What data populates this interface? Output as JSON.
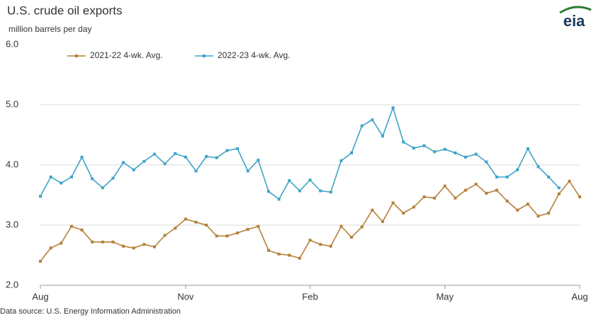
{
  "chart_data": {
    "type": "line",
    "title": "U.S. crude oil exports",
    "subtitle": "million barrels per day",
    "source": "Data source: U.S. Energy Information Administration",
    "logo": "eia",
    "categories": [
      "Aug",
      null,
      null,
      null,
      null,
      null,
      null,
      null,
      null,
      null,
      null,
      null,
      null,
      null,
      "Nov",
      null,
      null,
      null,
      null,
      null,
      null,
      null,
      null,
      null,
      null,
      null,
      "Feb",
      null,
      null,
      null,
      null,
      null,
      null,
      null,
      null,
      null,
      null,
      null,
      null,
      "May",
      null,
      null,
      null,
      null,
      null,
      null,
      null,
      null,
      null,
      null,
      null,
      null,
      "Aug"
    ],
    "series": [
      {
        "name": "2021-22 4-wk. Avg.",
        "color": "#b5803a",
        "values": [
          2.4,
          2.62,
          2.7,
          2.98,
          2.92,
          2.72,
          2.72,
          2.72,
          2.65,
          2.62,
          2.68,
          2.64,
          2.83,
          2.95,
          3.1,
          3.05,
          3.0,
          2.82,
          2.82,
          2.87,
          2.93,
          2.98,
          2.58,
          2.52,
          2.5,
          2.45,
          2.75,
          2.68,
          2.65,
          2.98,
          2.8,
          2.97,
          3.25,
          3.06,
          3.37,
          3.2,
          3.3,
          3.47,
          3.45,
          3.65,
          3.45,
          3.58,
          3.68,
          3.53,
          3.58,
          3.4,
          3.25,
          3.35,
          3.15,
          3.2,
          3.52,
          3.73,
          3.47
        ]
      },
      {
        "name": "2022-23 4-wk. Avg.",
        "color": "#3fa3c8",
        "values": [
          3.48,
          3.8,
          3.7,
          3.8,
          4.13,
          3.77,
          3.62,
          3.78,
          4.04,
          3.92,
          4.06,
          4.18,
          4.02,
          4.19,
          4.13,
          3.9,
          4.14,
          4.12,
          4.24,
          4.27,
          3.9,
          4.08,
          3.56,
          3.43,
          3.74,
          3.57,
          3.75,
          3.57,
          3.55,
          4.07,
          4.2,
          4.65,
          4.75,
          4.48,
          4.95,
          4.38,
          4.28,
          4.32,
          4.22,
          4.26,
          4.2,
          4.13,
          4.18,
          4.05,
          3.8,
          3.8,
          3.92,
          4.27,
          3.97,
          3.8,
          3.62,
          null,
          null
        ]
      }
    ],
    "ylim": [
      2,
      6
    ],
    "yticks": [
      {
        "value": 2,
        "label": "2.0"
      },
      {
        "value": 3,
        "label": "3.0"
      },
      {
        "value": 4,
        "label": "4.0"
      },
      {
        "value": 5,
        "label": "5.0"
      },
      {
        "value": 6,
        "label": "6.0"
      }
    ],
    "grid": true
  }
}
